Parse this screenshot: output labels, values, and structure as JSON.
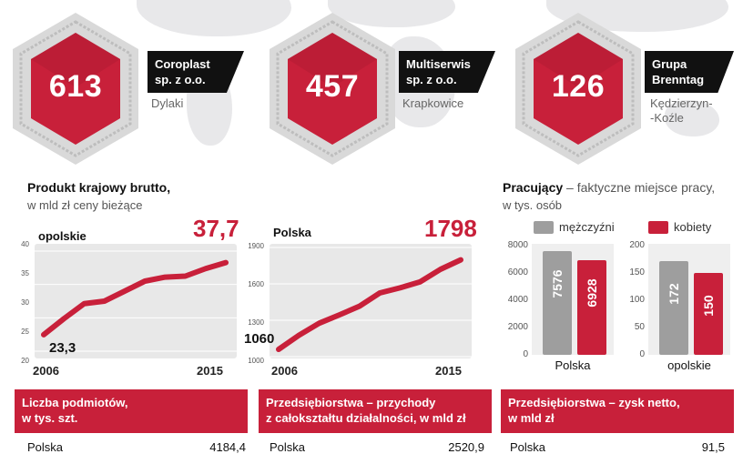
{
  "companies": [
    {
      "value": "613",
      "name1": "Coroplast",
      "name2": "sp. z o.o.",
      "loc1": "Dylaki",
      "loc2": ""
    },
    {
      "value": "457",
      "name1": "Multiserwis",
      "name2": "sp. z o.o.",
      "loc1": "Krapkowice",
      "loc2": ""
    },
    {
      "value": "126",
      "name1": "Grupa",
      "name2": "Brenntag",
      "loc1": "Kędzierzyn-",
      "loc2": "-Koźle"
    }
  ],
  "gdp": {
    "title": "Produkt krajowy brutto,",
    "subtitle": "w mld zł ceny bieżące"
  },
  "employment": {
    "title": "Pracujący",
    "title_rest": " – faktyczne miejsce pracy,",
    "subtitle": "w tys. osób",
    "legend_men": "mężczyźni",
    "legend_women": "kobiety",
    "color_men": "#9e9e9e",
    "color_women": "#c8203a"
  },
  "chart_data": [
    {
      "type": "line",
      "label": "opolskie",
      "x": [
        2006,
        2007,
        2008,
        2009,
        2010,
        2011,
        2012,
        2013,
        2014,
        2015
      ],
      "values": [
        23.3,
        26.5,
        29.5,
        30.0,
        32.0,
        34.0,
        34.8,
        35.0,
        36.5,
        37.7
      ],
      "first_label": "23,3",
      "last_label": "37,7",
      "x_start_label": "2006",
      "x_end_label": "2015",
      "yticks": [
        "40",
        "35",
        "30",
        "25",
        "20"
      ],
      "ylim": [
        20,
        40
      ]
    },
    {
      "type": "line",
      "label": "Polska",
      "x": [
        2006,
        2007,
        2008,
        2009,
        2010,
        2011,
        2012,
        2013,
        2014,
        2015
      ],
      "values": [
        1060,
        1176,
        1275,
        1344,
        1416,
        1525,
        1567,
        1617,
        1720,
        1798
      ],
      "first_label": "1060",
      "last_label": "1798",
      "x_start_label": "2006",
      "x_end_label": "2015",
      "yticks": [
        "1900",
        "1600",
        "1300",
        "1000"
      ],
      "ylim": [
        1000,
        1900
      ]
    },
    {
      "type": "bar",
      "category": "Polska",
      "series": [
        {
          "name": "mężczyźni",
          "value": 7576,
          "label": "7576"
        },
        {
          "name": "kobiety",
          "value": 6928,
          "label": "6928"
        }
      ],
      "yticks": [
        "8000",
        "6000",
        "4000",
        "2000",
        "0"
      ],
      "ylim": [
        0,
        8000
      ]
    },
    {
      "type": "bar",
      "category": "opolskie",
      "series": [
        {
          "name": "mężczyźni",
          "value": 172,
          "label": "172"
        },
        {
          "name": "kobiety",
          "value": 150,
          "label": "150"
        }
      ],
      "yticks": [
        "200",
        "150",
        "100",
        "50",
        "0"
      ],
      "ylim": [
        0,
        200
      ]
    }
  ],
  "tables": [
    {
      "line1": "Liczba podmiotów,",
      "line2": "w tys. szt.",
      "row_label": "Polska",
      "row_value": "4184,4"
    },
    {
      "line1": "Przedsiębiorstwa – przychody",
      "line2": "z całokształtu działalności, w mld zł",
      "row_label": "Polska",
      "row_value": "2520,9"
    },
    {
      "line1": "Przedsiębiorstwa – zysk netto,",
      "line2": "w mld zł",
      "row_label": "Polska",
      "row_value": "91,5"
    }
  ]
}
